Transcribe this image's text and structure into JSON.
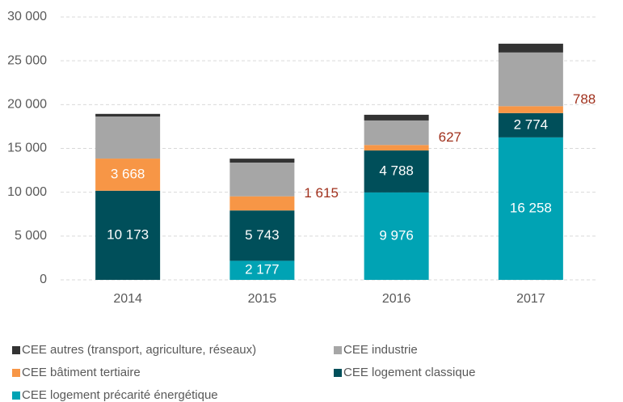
{
  "chart_data": {
    "type": "stacked_bar",
    "categories": [
      "2014",
      "2015",
      "2016",
      "2017"
    ],
    "series": [
      {
        "name": "CEE logement précarité énergétique",
        "color": "#00a3b4",
        "values": [
          0,
          2177,
          9976,
          16258
        ],
        "value_labels": [
          null,
          "2 177",
          "9 976",
          "16 258"
        ]
      },
      {
        "name": "CEE logement classique",
        "color": "#004f5a",
        "values": [
          10173,
          5743,
          4788,
          2774
        ],
        "value_labels": [
          "10 173",
          "5 743",
          "4 788",
          "2 774"
        ]
      },
      {
        "name": "CEE bâtiment tertiaire",
        "color": "#f79646",
        "values": [
          3668,
          1615,
          627,
          788
        ],
        "value_labels": [
          "3 668",
          "1 615",
          "627",
          "788"
        ]
      },
      {
        "name": "CEE industrie",
        "color": "#a6a6a6",
        "values": [
          4800,
          3850,
          2800,
          6130
        ]
      },
      {
        "name": "CEE autres (transport, agriculture, réseaux)",
        "color": "#333333",
        "values": [
          300,
          450,
          650,
          1000
        ]
      }
    ],
    "legend_order": [
      4,
      3,
      2,
      1,
      0
    ],
    "ylim": [
      0,
      30000
    ],
    "yticks": [
      0,
      {
        "value": 5000,
        "label": "5 000"
      },
      {
        "value": 10000,
        "label": "10 000"
      },
      {
        "value": 15000,
        "label": "15 000"
      },
      {
        "value": 20000,
        "label": "20 000"
      },
      {
        "value": 25000,
        "label": "25 000"
      },
      {
        "value": 30000,
        "label": "30 000"
      }
    ],
    "grid": true
  }
}
